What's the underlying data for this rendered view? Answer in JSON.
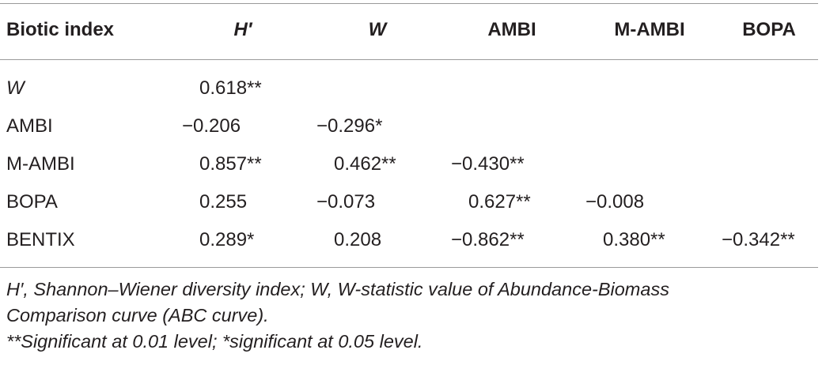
{
  "table": {
    "headers": [
      "Biotic index",
      "H′",
      "W",
      "AMBI",
      "M-AMBI",
      "BOPA"
    ],
    "rows": [
      {
        "label": "W",
        "values": [
          "0.618**",
          "",
          "",
          "",
          ""
        ]
      },
      {
        "label": "AMBI",
        "values": [
          "−0.206",
          "−0.296*",
          "",
          "",
          ""
        ]
      },
      {
        "label": "M-AMBI",
        "values": [
          "0.857**",
          "0.462**",
          "−0.430**",
          "",
          ""
        ]
      },
      {
        "label": "BOPA",
        "values": [
          "0.255",
          "−0.073",
          "0.627**",
          "−0.008",
          ""
        ]
      },
      {
        "label": "BENTIX",
        "values": [
          "0.289*",
          "0.208",
          "−0.862**",
          "0.380**",
          "−0.342**"
        ]
      }
    ]
  },
  "footnotes": {
    "line1": "H′, Shannon–Wiener diversity index; W, W-statistic value of Abundance-Biomass",
    "line2": "Comparison curve (ABC curve).",
    "line3": "**Significant at 0.01 level; *significant at 0.05 level."
  }
}
